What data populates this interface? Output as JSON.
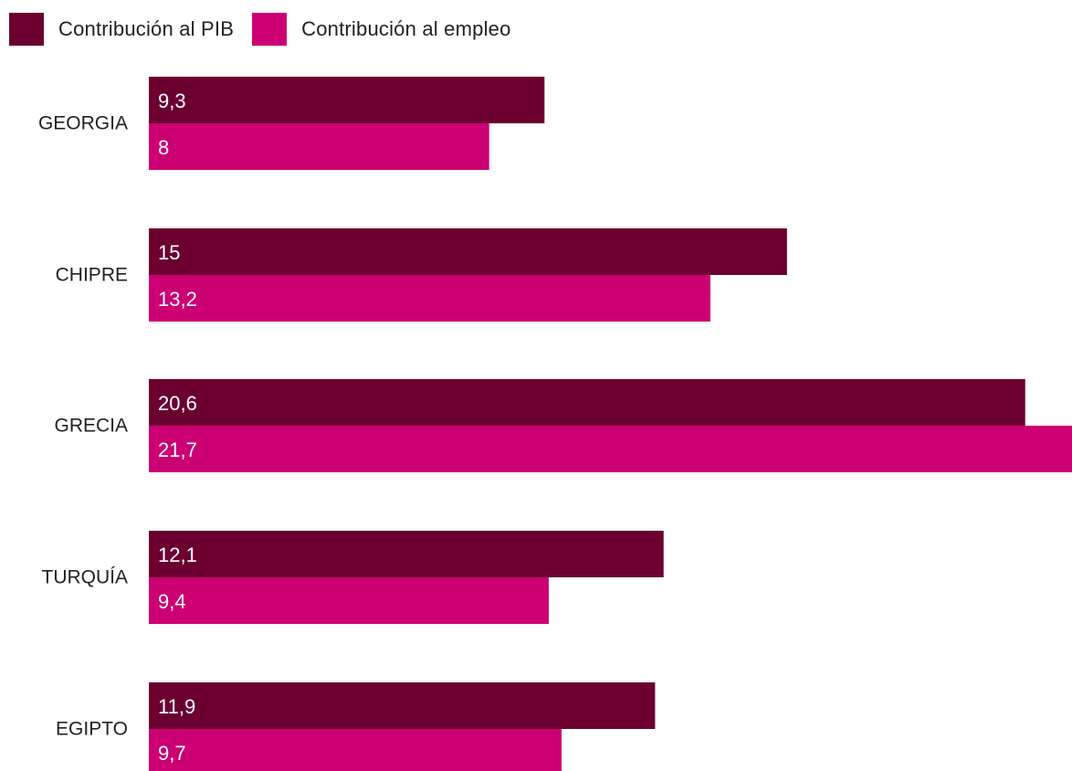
{
  "chart_data": {
    "type": "bar",
    "orientation": "horizontal",
    "categories": [
      "GEORGIA",
      "CHIPRE",
      "GRECIA",
      "TURQUÍA",
      "EGIPTO"
    ],
    "series": [
      {
        "name": "Contribución al PIB",
        "color": "#6b0030",
        "values": [
          9.3,
          15,
          20.6,
          12.1,
          11.9
        ],
        "labels": [
          "9,3",
          "15",
          "20,6",
          "12,1",
          "11,9"
        ]
      },
      {
        "name": "Contribución al empleo",
        "color": "#cc0073",
        "values": [
          8,
          13.2,
          21.7,
          9.4,
          9.7
        ],
        "labels": [
          "8",
          "13,2",
          "21,7",
          "9,4",
          "9,7"
        ]
      }
    ],
    "xlim": [
      0,
      21.7
    ],
    "grid": false,
    "legend_position": "top-left"
  }
}
